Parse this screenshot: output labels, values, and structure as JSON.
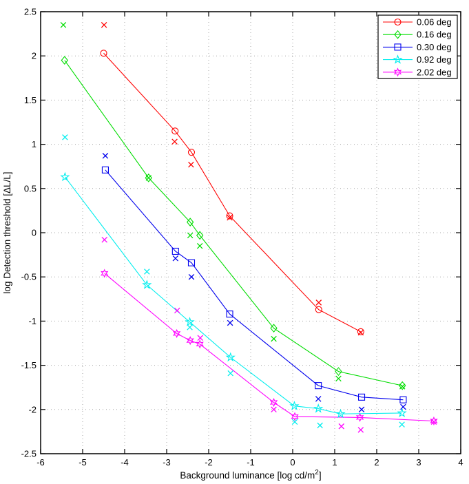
{
  "window": {
    "background": "#ffffff"
  },
  "chart_data": {
    "type": "line",
    "title": "",
    "xlabel": "Background luminance [log cd/m2]",
    "xlabel_parts": {
      "main": "Background luminance [log cd/m",
      "sup": "2",
      "close": "]"
    },
    "ylabel": "log Detection threshold [ΔL/L]",
    "xlim": [
      -6,
      4
    ],
    "ylim": [
      -2.5,
      2.5
    ],
    "xticks": [
      -6,
      -5,
      -4,
      -3,
      -2,
      -1,
      0,
      1,
      2,
      3,
      4
    ],
    "yticks": [
      -2.5,
      -2,
      -1.5,
      -1,
      -0.5,
      0,
      0.5,
      1,
      1.5,
      2,
      2.5
    ],
    "grid": true,
    "grid_color": "#a6a6a6",
    "axis_color": "#000000",
    "legend": {
      "position": "top-right",
      "entries": [
        "0.06 deg",
        "0.16 deg",
        "0.30 deg",
        "0.92 deg",
        "2.02 deg"
      ]
    },
    "series": [
      {
        "name": "0.06 deg",
        "color": "#ff0000",
        "marker": "circle",
        "line_points": [
          [
            -4.5,
            2.03
          ],
          [
            -2.8,
            1.15
          ],
          [
            -2.41,
            0.91
          ],
          [
            -1.5,
            0.19
          ],
          [
            0.62,
            -0.87
          ],
          [
            1.62,
            -1.12
          ]
        ],
        "x_points": [
          [
            -4.49,
            2.35
          ],
          [
            -2.81,
            1.03
          ],
          [
            -2.42,
            0.77
          ],
          [
            -1.5,
            0.17
          ],
          [
            0.62,
            -0.79
          ],
          [
            1.62,
            -1.13
          ]
        ]
      },
      {
        "name": "0.16 deg",
        "color": "#00dd00",
        "marker": "diamond",
        "line_points": [
          [
            -5.43,
            1.95
          ],
          [
            -3.43,
            0.62
          ],
          [
            -2.44,
            0.12
          ],
          [
            -2.21,
            -0.03
          ],
          [
            -0.45,
            -1.08
          ],
          [
            1.09,
            -1.57
          ],
          [
            2.61,
            -1.73
          ]
        ],
        "x_points": [
          [
            -5.46,
            2.35
          ],
          [
            -3.43,
            0.62
          ],
          [
            -2.44,
            -0.03
          ],
          [
            -2.21,
            -0.15
          ],
          [
            -0.45,
            -1.2
          ],
          [
            1.09,
            -1.65
          ],
          [
            2.61,
            -1.74
          ]
        ]
      },
      {
        "name": "0.30 deg",
        "color": "#0000ee",
        "marker": "square",
        "line_points": [
          [
            -4.46,
            0.71
          ],
          [
            -2.79,
            -0.21
          ],
          [
            -2.41,
            -0.34
          ],
          [
            -1.5,
            -0.92
          ],
          [
            0.61,
            -1.73
          ],
          [
            1.64,
            -1.86
          ],
          [
            2.63,
            -1.89
          ]
        ],
        "x_points": [
          [
            -4.46,
            0.87
          ],
          [
            -2.79,
            -0.29
          ],
          [
            -2.41,
            -0.5
          ],
          [
            -1.49,
            -1.02
          ],
          [
            0.61,
            -1.88
          ],
          [
            1.64,
            -2.0
          ],
          [
            2.63,
            -1.97
          ]
        ]
      },
      {
        "name": "0.92 deg",
        "color": "#00eeee",
        "marker": "star5",
        "line_points": [
          [
            -5.42,
            0.63
          ],
          [
            -3.47,
            -0.59
          ],
          [
            -2.45,
            -1.01
          ],
          [
            -1.48,
            -1.41
          ],
          [
            0.04,
            -1.96
          ],
          [
            0.61,
            -1.99
          ],
          [
            1.14,
            -2.05
          ],
          [
            2.6,
            -2.04
          ]
        ],
        "x_points": [
          [
            -5.42,
            1.08
          ],
          [
            -3.47,
            -0.44
          ],
          [
            -2.45,
            -1.07
          ],
          [
            -1.48,
            -1.59
          ],
          [
            0.05,
            -2.14
          ],
          [
            0.65,
            -2.18
          ],
          [
            2.6,
            -2.17
          ]
        ]
      },
      {
        "name": "2.02 deg",
        "color": "#ff00ff",
        "marker": "star6",
        "line_points": [
          [
            -4.48,
            -0.46
          ],
          [
            -2.76,
            -1.14
          ],
          [
            -2.44,
            -1.22
          ],
          [
            -2.21,
            -1.26
          ],
          [
            -0.45,
            -1.92
          ],
          [
            0.05,
            -2.08
          ],
          [
            1.6,
            -2.09
          ],
          [
            3.36,
            -2.13
          ]
        ],
        "x_points": [
          [
            -4.48,
            -0.08
          ],
          [
            -2.75,
            -0.88
          ],
          [
            -2.2,
            -1.19
          ],
          [
            -0.45,
            -2.0
          ],
          [
            1.16,
            -2.19
          ],
          [
            1.62,
            -2.23
          ],
          [
            3.36,
            -2.14
          ]
        ]
      }
    ]
  }
}
